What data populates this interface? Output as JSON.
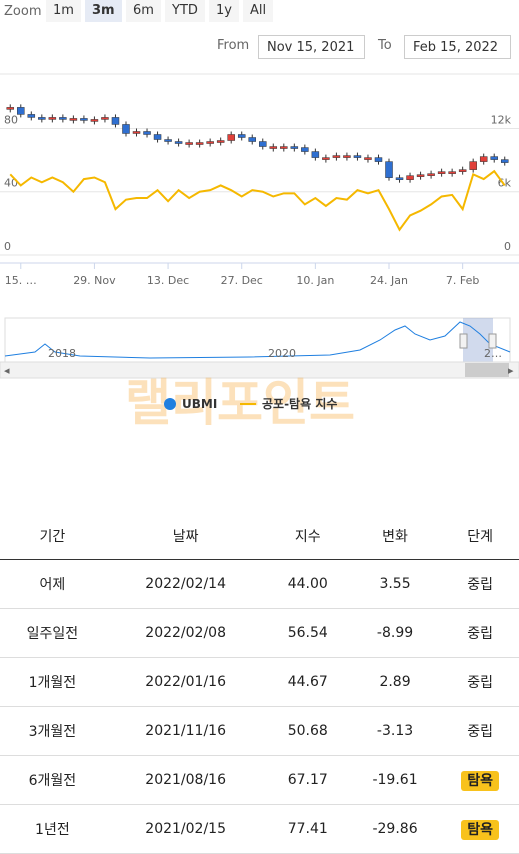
{
  "toolbar": {
    "zoom_label": "Zoom",
    "buttons": [
      "1m",
      "3m",
      "6m",
      "YTD",
      "1y",
      "All"
    ],
    "active": 1,
    "from_label": "From",
    "from": "Nov 15, 2021",
    "to_label": "To",
    "to": "Feb 15, 2022"
  },
  "chart_data": {
    "type": "stock",
    "x": [
      "2021-11-13",
      "2021-11-15",
      "2021-11-17",
      "2021-11-19",
      "2021-11-21",
      "2021-11-23",
      "2021-11-25",
      "2021-11-27",
      "2021-11-29",
      "2021-12-01",
      "2021-12-03",
      "2021-12-05",
      "2021-12-07",
      "2021-12-09",
      "2021-12-11",
      "2021-12-13",
      "2021-12-15",
      "2021-12-17",
      "2021-12-19",
      "2021-12-21",
      "2021-12-23",
      "2021-12-25",
      "2021-12-27",
      "2021-12-29",
      "2021-12-31",
      "2022-01-02",
      "2022-01-04",
      "2022-01-06",
      "2022-01-08",
      "2022-01-10",
      "2022-01-12",
      "2022-01-14",
      "2022-01-16",
      "2022-01-18",
      "2022-01-20",
      "2022-01-22",
      "2022-01-24",
      "2022-01-26",
      "2022-01-28",
      "2022-01-30",
      "2022-02-01",
      "2022-02-03",
      "2022-02-05",
      "2022-02-07",
      "2022-02-09",
      "2022-02-11",
      "2022-02-13",
      "2022-02-15"
    ],
    "xlim": [
      "2021-11-12",
      "2022-02-16"
    ],
    "xticks": [
      {
        "value": "2021-11-15",
        "label": "15. …"
      },
      {
        "value": "2021-11-29",
        "label": "29. Nov"
      },
      {
        "value": "2021-12-13",
        "label": "13. Dec"
      },
      {
        "value": "2021-12-27",
        "label": "27. Dec"
      },
      {
        "value": "2022-01-10",
        "label": "10. Jan"
      },
      {
        "value": "2022-01-24",
        "label": "24. Jan"
      },
      {
        "value": "2022-02-07",
        "label": "7. Feb"
      }
    ],
    "ylim": [
      0,
      98
    ],
    "yticks": [
      0,
      40,
      80
    ],
    "y2lim": [
      0,
      14700
    ],
    "y2ticks": [
      0,
      {
        "value": 6000,
        "label": "6k"
      },
      {
        "value": 12000,
        "label": "12k"
      }
    ],
    "up_color": "#e0403a",
    "down_color": "#2f6fd0",
    "series": [
      {
        "name": "UBMI",
        "color": "#1f7fe0",
        "axis": "y2",
        "values": [
          14000,
          13333,
          13048,
          12857,
          13048,
          12857,
          12952,
          12857,
          12857,
          13048,
          12381,
          11524,
          11714,
          11429,
          10952,
          10762,
          10667,
          10667,
          10667,
          10762,
          10857,
          11429,
          11143,
          10762,
          10286,
          10286,
          10286,
          10190,
          9810,
          9238,
          9238,
          9429,
          9429,
          9238,
          9238,
          8857,
          7333,
          7143,
          7524,
          7619,
          7714,
          7905,
          7905,
          8095,
          8857,
          9333,
          9048,
          8762
        ]
      },
      {
        "name": "공포-탐욕 지수",
        "color": "#f5b800",
        "values": [
          51,
          44,
          49,
          46,
          49,
          46,
          40,
          48,
          49,
          46,
          29,
          35,
          36,
          36,
          41,
          34,
          41,
          36,
          40,
          41,
          44,
          41,
          37,
          41,
          40,
          37,
          39,
          39,
          32,
          36,
          31,
          36,
          35,
          41,
          39,
          41,
          29,
          16,
          25,
          28,
          32,
          37,
          38,
          29,
          51,
          48,
          53,
          44
        ]
      }
    ]
  },
  "navigator": {
    "labels": [
      "2018",
      "2020",
      "2…"
    ]
  },
  "watermark": "랠리포인트",
  "table": {
    "header": [
      "기간",
      "날짜",
      "지수",
      "변화",
      "단계"
    ],
    "rows": [
      [
        "어제",
        "2022/02/14",
        "44.00",
        "3.55",
        "중립"
      ],
      [
        "일주일전",
        "2022/02/08",
        "56.54",
        "-8.99",
        "중립"
      ],
      [
        "1개월전",
        "2022/01/16",
        "44.67",
        "2.89",
        "중립"
      ],
      [
        "3개월전",
        "2021/11/16",
        "50.68",
        "-3.13",
        "중립"
      ],
      [
        "6개월전",
        "2021/08/16",
        "67.17",
        "-19.61",
        "탐욕"
      ],
      [
        "1년전",
        "2021/02/15",
        "77.41",
        "-29.86",
        "탐욕"
      ]
    ]
  }
}
